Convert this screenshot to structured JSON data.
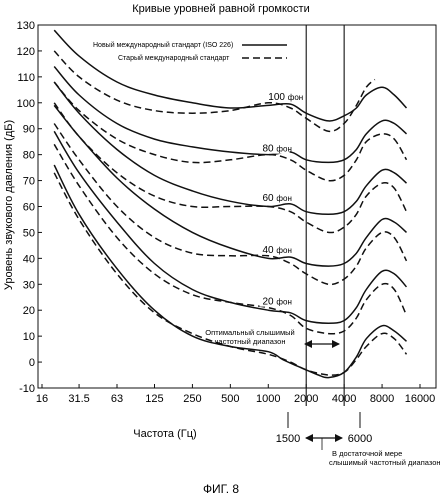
{
  "chart_data": {
    "type": "line",
    "title": "Кривые уровней равной громкости",
    "xlabel": "Частота (Гц)",
    "ylabel": "Уровень звукового давления (дБ)",
    "x_scale": "log",
    "x_ticks": [
      16,
      31.5,
      63,
      125,
      250,
      500,
      1000,
      2000,
      4000,
      8000,
      16000
    ],
    "x_tick_labels": [
      "16",
      "31.5",
      "63",
      "125",
      "250",
      "500",
      "1000",
      "2000",
      "4000",
      "8000",
      "16000"
    ],
    "y_ticks": [
      -10,
      0,
      10,
      20,
      30,
      40,
      50,
      60,
      70,
      80,
      90,
      100,
      110,
      120,
      130
    ],
    "y_tick_labels": [
      "-10",
      "0",
      "10",
      "20",
      "30",
      "40",
      "50",
      "60",
      "70",
      "80",
      "90",
      "100",
      "110",
      "120",
      "130"
    ],
    "ylim": [
      -10,
      130
    ],
    "grid": false,
    "legend_position": "top-center",
    "legend": [
      {
        "label": "Новый международный стандарт (ISO 226)",
        "style": "solid"
      },
      {
        "label": "Старый международный стандарт",
        "style": "dashed"
      }
    ],
    "phon_unit": "фон",
    "series": [
      {
        "group": "new",
        "phon": "100",
        "points": [
          [
            20,
            128
          ],
          [
            31.5,
            118
          ],
          [
            63,
            108
          ],
          [
            125,
            103
          ],
          [
            250,
            100
          ],
          [
            500,
            98
          ],
          [
            1000,
            99
          ],
          [
            1500,
            99.5
          ],
          [
            2000,
            96
          ],
          [
            3000,
            93
          ],
          [
            4000,
            95
          ],
          [
            5000,
            98
          ],
          [
            6000,
            103
          ],
          [
            8000,
            106
          ],
          [
            10000,
            103
          ],
          [
            12500,
            98
          ]
        ]
      },
      {
        "group": "new",
        "phon": "80",
        "points": [
          [
            20,
            114
          ],
          [
            31.5,
            103
          ],
          [
            63,
            92
          ],
          [
            125,
            86
          ],
          [
            250,
            83
          ],
          [
            500,
            81
          ],
          [
            1000,
            80
          ],
          [
            1500,
            81
          ],
          [
            2000,
            78
          ],
          [
            3000,
            77
          ],
          [
            4000,
            78
          ],
          [
            5000,
            82
          ],
          [
            6000,
            88
          ],
          [
            8000,
            93
          ],
          [
            10000,
            92
          ],
          [
            12500,
            88
          ]
        ]
      },
      {
        "group": "new",
        "phon": "60",
        "points": [
          [
            20,
            108
          ],
          [
            31.5,
            96
          ],
          [
            63,
            82
          ],
          [
            125,
            72
          ],
          [
            250,
            66
          ],
          [
            500,
            62
          ],
          [
            1000,
            60
          ],
          [
            1500,
            61
          ],
          [
            2000,
            58
          ],
          [
            3000,
            57
          ],
          [
            4000,
            58
          ],
          [
            5000,
            62
          ],
          [
            6000,
            68
          ],
          [
            8000,
            74
          ],
          [
            10000,
            73
          ],
          [
            12500,
            69
          ]
        ]
      },
      {
        "group": "new",
        "phon": "40",
        "points": [
          [
            20,
            99
          ],
          [
            31.5,
            87
          ],
          [
            63,
            71
          ],
          [
            125,
            59
          ],
          [
            250,
            50
          ],
          [
            500,
            44
          ],
          [
            1000,
            40
          ],
          [
            1500,
            40.5
          ],
          [
            2000,
            38
          ],
          [
            3000,
            37
          ],
          [
            4000,
            38
          ],
          [
            5000,
            42
          ],
          [
            6000,
            48
          ],
          [
            8000,
            55
          ],
          [
            10000,
            54
          ],
          [
            12500,
            50
          ]
        ]
      },
      {
        "group": "new",
        "phon": "20",
        "points": [
          [
            20,
            89
          ],
          [
            31.5,
            73
          ],
          [
            63,
            54
          ],
          [
            125,
            38
          ],
          [
            250,
            28
          ],
          [
            500,
            23
          ],
          [
            1000,
            20
          ],
          [
            1500,
            19
          ],
          [
            2000,
            16
          ],
          [
            3000,
            15
          ],
          [
            4000,
            16
          ],
          [
            5000,
            21
          ],
          [
            6000,
            28
          ],
          [
            8000,
            35
          ],
          [
            10000,
            34
          ],
          [
            12500,
            29
          ]
        ]
      },
      {
        "group": "new",
        "phon": "",
        "points": [
          [
            20,
            76
          ],
          [
            31.5,
            57
          ],
          [
            63,
            36
          ],
          [
            125,
            20
          ],
          [
            250,
            10
          ],
          [
            500,
            6
          ],
          [
            1000,
            4
          ],
          [
            1300,
            1
          ],
          [
            1600,
            -1
          ],
          [
            2000,
            -3
          ],
          [
            2500,
            -5
          ],
          [
            3000,
            -6
          ],
          [
            4000,
            -4
          ],
          [
            5000,
            2
          ],
          [
            6000,
            9
          ],
          [
            8000,
            14
          ],
          [
            10000,
            12
          ],
          [
            12500,
            8
          ]
        ]
      },
      {
        "group": "old",
        "phon": "",
        "points": [
          [
            20,
            120
          ],
          [
            31.5,
            110
          ],
          [
            63,
            101
          ],
          [
            125,
            97
          ],
          [
            250,
            96
          ],
          [
            500,
            97
          ],
          [
            1000,
            100
          ],
          [
            1500,
            98
          ],
          [
            2000,
            94
          ],
          [
            3000,
            89
          ],
          [
            4000,
            92
          ],
          [
            5000,
            99
          ],
          [
            6000,
            106
          ],
          [
            7000,
            109
          ]
        ]
      },
      {
        "group": "old",
        "phon": "",
        "points": [
          [
            20,
            108
          ],
          [
            31.5,
            97
          ],
          [
            63,
            86
          ],
          [
            125,
            80
          ],
          [
            250,
            77
          ],
          [
            500,
            78
          ],
          [
            1000,
            80
          ],
          [
            1500,
            78
          ],
          [
            2000,
            74
          ],
          [
            3000,
            70
          ],
          [
            4000,
            72
          ],
          [
            5000,
            78
          ],
          [
            6000,
            85
          ],
          [
            8000,
            88
          ],
          [
            10000,
            86
          ],
          [
            12500,
            78
          ]
        ]
      },
      {
        "group": "old",
        "phon": "",
        "points": [
          [
            20,
            100
          ],
          [
            31.5,
            87
          ],
          [
            63,
            73
          ],
          [
            125,
            64
          ],
          [
            250,
            60
          ],
          [
            500,
            60
          ],
          [
            1000,
            60
          ],
          [
            1500,
            58
          ],
          [
            2000,
            54
          ],
          [
            3000,
            50
          ],
          [
            4000,
            52
          ],
          [
            5000,
            57
          ],
          [
            6000,
            64
          ],
          [
            8000,
            69
          ],
          [
            10000,
            67
          ],
          [
            12500,
            58
          ]
        ]
      },
      {
        "group": "old",
        "phon": "",
        "points": [
          [
            20,
            92
          ],
          [
            31.5,
            78
          ],
          [
            63,
            60
          ],
          [
            125,
            48
          ],
          [
            250,
            42
          ],
          [
            500,
            41
          ],
          [
            1000,
            41
          ],
          [
            1500,
            38
          ],
          [
            2000,
            34
          ],
          [
            3000,
            30
          ],
          [
            4000,
            32
          ],
          [
            5000,
            37
          ],
          [
            6000,
            44
          ],
          [
            8000,
            50
          ],
          [
            10000,
            48
          ],
          [
            12500,
            39
          ]
        ]
      },
      {
        "group": "old",
        "phon": "",
        "points": [
          [
            20,
            84
          ],
          [
            31.5,
            68
          ],
          [
            63,
            48
          ],
          [
            125,
            34
          ],
          [
            250,
            26
          ],
          [
            500,
            23
          ],
          [
            1000,
            21
          ],
          [
            1500,
            18
          ],
          [
            2000,
            13
          ],
          [
            3000,
            11
          ],
          [
            4000,
            12
          ],
          [
            5000,
            17
          ],
          [
            6000,
            24
          ],
          [
            8000,
            30
          ],
          [
            10000,
            28
          ],
          [
            12500,
            18
          ]
        ]
      },
      {
        "group": "old",
        "phon": "",
        "points": [
          [
            20,
            73
          ],
          [
            31.5,
            55
          ],
          [
            63,
            34
          ],
          [
            125,
            19
          ],
          [
            250,
            11
          ],
          [
            500,
            6
          ],
          [
            1000,
            3
          ],
          [
            1500,
            0
          ],
          [
            2000,
            -3
          ],
          [
            3000,
            -5
          ],
          [
            4000,
            -4
          ],
          [
            5000,
            1
          ],
          [
            6000,
            6
          ],
          [
            8000,
            11
          ],
          [
            10000,
            9
          ],
          [
            12500,
            3
          ]
        ]
      }
    ],
    "phon_labels": [
      {
        "value": "100",
        "x": 1000,
        "y": 100
      },
      {
        "value": "80",
        "x": 900,
        "y": 80
      },
      {
        "value": "60",
        "x": 900,
        "y": 61
      },
      {
        "value": "40",
        "x": 900,
        "y": 41
      },
      {
        "value": "20",
        "x": 900,
        "y": 21
      }
    ],
    "vertical_lines": [
      2000,
      4000
    ],
    "annotations": {
      "optimal_range": {
        "text_line1": "Оптимальный слышимый",
        "text_line2": "частотный диапазон",
        "from": 2000,
        "to": 4000
      },
      "sufficient_range": {
        "from_label": "1500",
        "to_label": "6000",
        "text_line1": "В достаточной мере",
        "text_line2": "слышимый частотный диапазон",
        "from": 1500,
        "to": 6000
      }
    },
    "figure_label": "ФИГ. 8"
  }
}
